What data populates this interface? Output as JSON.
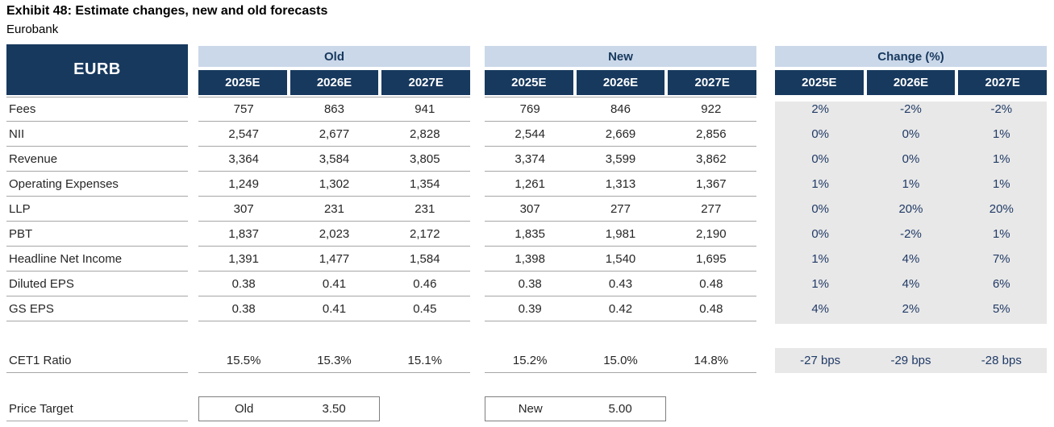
{
  "title": "Exhibit 48: Estimate changes, new and old forecasts",
  "subtitle": "Eurobank",
  "colors": {
    "navy": "#17395E",
    "light_blue": "#CBD8E9",
    "gray_bg": "#E8E8E8",
    "row_line": "#A6A6A6",
    "change_text": "#203A66"
  },
  "table": {
    "ticker": "EURB",
    "groups": [
      {
        "label": "Old",
        "years": [
          "2025E",
          "2026E",
          "2027E"
        ]
      },
      {
        "label": "New",
        "years": [
          "2025E",
          "2026E",
          "2027E"
        ]
      },
      {
        "label": "Change (%)",
        "years": [
          "2025E",
          "2026E",
          "2027E"
        ]
      }
    ],
    "rows": [
      {
        "label": "Fees",
        "old": [
          "757",
          "863",
          "941"
        ],
        "new": [
          "769",
          "846",
          "922"
        ],
        "change": [
          "2%",
          "-2%",
          "-2%"
        ]
      },
      {
        "label": "NII",
        "old": [
          "2,547",
          "2,677",
          "2,828"
        ],
        "new": [
          "2,544",
          "2,669",
          "2,856"
        ],
        "change": [
          "0%",
          "0%",
          "1%"
        ]
      },
      {
        "label": "Revenue",
        "old": [
          "3,364",
          "3,584",
          "3,805"
        ],
        "new": [
          "3,374",
          "3,599",
          "3,862"
        ],
        "change": [
          "0%",
          "0%",
          "1%"
        ]
      },
      {
        "label": "Operating Expenses",
        "old": [
          "1,249",
          "1,302",
          "1,354"
        ],
        "new": [
          "1,261",
          "1,313",
          "1,367"
        ],
        "change": [
          "1%",
          "1%",
          "1%"
        ]
      },
      {
        "label": "LLP",
        "old": [
          "307",
          "231",
          "231"
        ],
        "new": [
          "307",
          "277",
          "277"
        ],
        "change": [
          "0%",
          "20%",
          "20%"
        ]
      },
      {
        "label": "PBT",
        "old": [
          "1,837",
          "2,023",
          "2,172"
        ],
        "new": [
          "1,835",
          "1,981",
          "2,190"
        ],
        "change": [
          "0%",
          "-2%",
          "1%"
        ]
      },
      {
        "label": "Headline Net Income",
        "old": [
          "1,391",
          "1,477",
          "1,584"
        ],
        "new": [
          "1,398",
          "1,540",
          "1,695"
        ],
        "change": [
          "1%",
          "4%",
          "7%"
        ]
      },
      {
        "label": "Diluted EPS",
        "old": [
          "0.38",
          "0.41",
          "0.46"
        ],
        "new": [
          "0.38",
          "0.43",
          "0.48"
        ],
        "change": [
          "1%",
          "4%",
          "6%"
        ]
      },
      {
        "label": "GS EPS",
        "old": [
          "0.38",
          "0.41",
          "0.45"
        ],
        "new": [
          "0.39",
          "0.42",
          "0.48"
        ],
        "change": [
          "4%",
          "2%",
          "5%"
        ]
      }
    ],
    "cet1_row": {
      "label": "CET1 Ratio",
      "old": [
        "15.5%",
        "15.3%",
        "15.1%"
      ],
      "new": [
        "15.2%",
        "15.0%",
        "14.8%"
      ],
      "change": [
        "-27 bps",
        "-29 bps",
        "-28 bps"
      ]
    },
    "price_target_row": {
      "label": "Price Target",
      "old_label": "Old",
      "old_value": "3.50",
      "new_label": "New",
      "new_value": "5.00"
    }
  }
}
